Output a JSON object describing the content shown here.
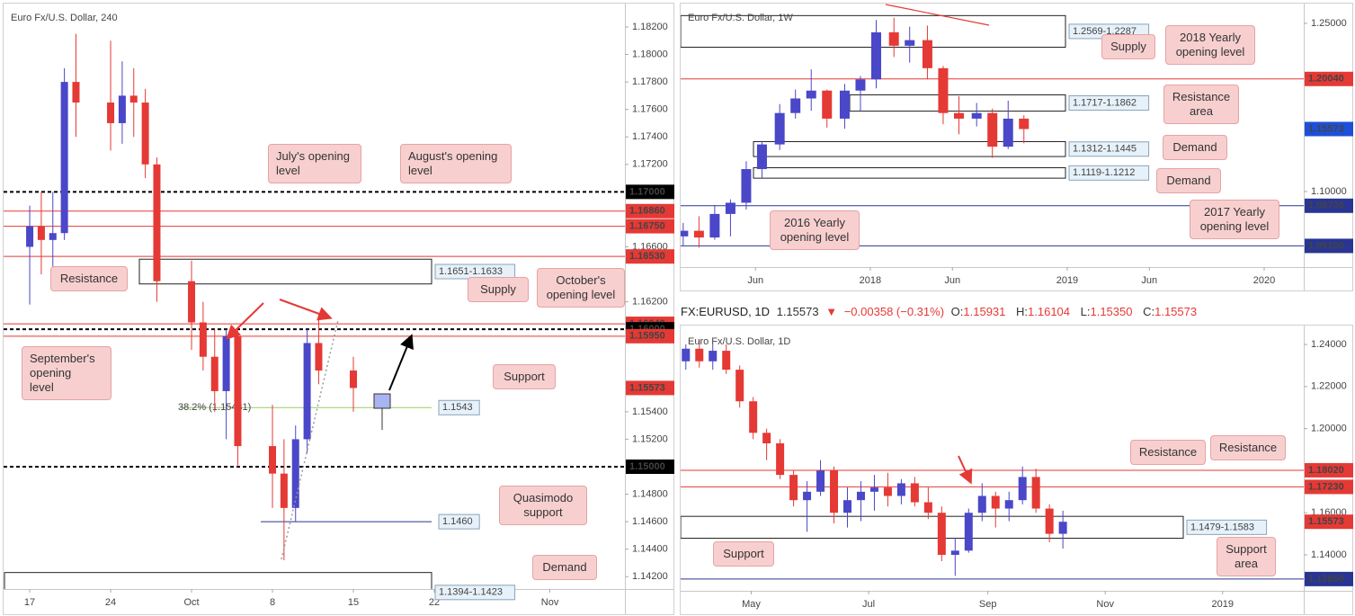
{
  "chart_data": [
    {
      "type": "candlestick",
      "title": "Euro Fx/U.S. Dollar, 240",
      "xlim": [
        -2.26,
        51.49
      ],
      "ylim": [
        1.1411,
        1.1837
      ],
      "xticks": [
        {
          "value": 0,
          "label": "17"
        },
        {
          "value": 7,
          "label": "24"
        },
        {
          "value": 14,
          "label": "Oct"
        },
        {
          "value": 21,
          "label": "8"
        },
        {
          "value": 28,
          "label": "15"
        },
        {
          "value": 35,
          "label": "22"
        },
        {
          "value": 45,
          "label": "Nov"
        }
      ],
      "yticks": [
        {
          "value": 1.182,
          "label": "1.18200"
        },
        {
          "value": 1.18,
          "label": "1.18000"
        },
        {
          "value": 1.178,
          "label": "1.17800"
        },
        {
          "value": 1.176,
          "label": "1.17600"
        },
        {
          "value": 1.174,
          "label": "1.17400"
        },
        {
          "value": 1.172,
          "label": "1.17200"
        },
        {
          "value": 1.166,
          "label": "1.16600"
        },
        {
          "value": 1.162,
          "label": "1.16200"
        },
        {
          "value": 1.154,
          "label": "1.15400"
        },
        {
          "value": 1.152,
          "label": "1.15200"
        },
        {
          "value": 1.148,
          "label": "1.14800"
        },
        {
          "value": 1.146,
          "label": "1.14600"
        },
        {
          "value": 1.144,
          "label": "1.14400"
        },
        {
          "value": 1.142,
          "label": "1.14200"
        }
      ],
      "up_color": "#4a47c8",
      "down_color": "#e53935",
      "candles": [
        {
          "x": 0,
          "o": 1.166,
          "h": 1.169,
          "l": 1.1618,
          "c": 1.1675
        },
        {
          "x": 1,
          "o": 1.1675,
          "h": 1.17,
          "l": 1.164,
          "c": 1.1665
        },
        {
          "x": 2,
          "o": 1.1665,
          "h": 1.17,
          "l": 1.1645,
          "c": 1.167
        },
        {
          "x": 3,
          "o": 1.167,
          "h": 1.179,
          "l": 1.1665,
          "c": 1.178
        },
        {
          "x": 4,
          "o": 1.178,
          "h": 1.1815,
          "l": 1.174,
          "c": 1.1765
        },
        {
          "x": 7,
          "o": 1.1765,
          "h": 1.181,
          "l": 1.173,
          "c": 1.175
        },
        {
          "x": 8,
          "o": 1.175,
          "h": 1.1795,
          "l": 1.1735,
          "c": 1.177
        },
        {
          "x": 9,
          "o": 1.177,
          "h": 1.179,
          "l": 1.174,
          "c": 1.1765
        },
        {
          "x": 10,
          "o": 1.1765,
          "h": 1.1775,
          "l": 1.171,
          "c": 1.172
        },
        {
          "x": 11,
          "o": 1.172,
          "h": 1.1725,
          "l": 1.162,
          "c": 1.1635
        },
        {
          "x": 14,
          "o": 1.1635,
          "h": 1.165,
          "l": 1.1585,
          "c": 1.1605
        },
        {
          "x": 15,
          "o": 1.1605,
          "h": 1.162,
          "l": 1.157,
          "c": 1.158
        },
        {
          "x": 16,
          "o": 1.158,
          "h": 1.16,
          "l": 1.154,
          "c": 1.1555
        },
        {
          "x": 17,
          "o": 1.1555,
          "h": 1.16,
          "l": 1.152,
          "c": 1.1595
        },
        {
          "x": 18,
          "o": 1.1595,
          "h": 1.16,
          "l": 1.15,
          "c": 1.1515
        },
        {
          "x": 21,
          "o": 1.1515,
          "h": 1.1545,
          "l": 1.147,
          "c": 1.1495
        },
        {
          "x": 22,
          "o": 1.1495,
          "h": 1.152,
          "l": 1.1432,
          "c": 1.147
        },
        {
          "x": 23,
          "o": 1.147,
          "h": 1.153,
          "l": 1.146,
          "c": 1.152
        },
        {
          "x": 24,
          "o": 1.152,
          "h": 1.16,
          "l": 1.151,
          "c": 1.159
        },
        {
          "x": 25,
          "o": 1.159,
          "h": 1.1612,
          "l": 1.156,
          "c": 1.157
        },
        {
          "x": 28,
          "o": 1.157,
          "h": 1.158,
          "l": 1.154,
          "c": 1.15573
        }
      ],
      "levels": [
        {
          "value": 1.17,
          "color": "#000000",
          "dashed": true,
          "axis_label": "1.17000"
        },
        {
          "value": 1.1686,
          "color": "#e53935",
          "dashed": false,
          "axis_label": "1.16860"
        },
        {
          "value": 1.1675,
          "color": "#e53935",
          "dashed": false,
          "axis_label": "1.16750"
        },
        {
          "value": 1.1653,
          "color": "#e53935",
          "dashed": false,
          "axis_label": "1.16530"
        },
        {
          "value": 1.1604,
          "color": "#e53935",
          "dashed": false,
          "axis_label": "1.16040"
        },
        {
          "value": 1.16,
          "color": "#000000",
          "dashed": true,
          "axis_label": "1.16000"
        },
        {
          "value": 1.1595,
          "color": "#e53935",
          "dashed": false,
          "axis_label": "1.15950"
        },
        {
          "value": 1.15573,
          "color": "#e53935",
          "line": false,
          "axis_label": "1.15573"
        },
        {
          "value": 1.15,
          "color": "#000000",
          "dashed": true,
          "axis_label": "1.15000"
        },
        {
          "value": 1.1543,
          "color": "#9ccc65",
          "dashed": false,
          "box_label": "1.1543"
        },
        {
          "value": 1.146,
          "color": "#283593",
          "dashed": false,
          "box_label": "1.1460"
        }
      ],
      "zones": [
        {
          "label": "1.1651-1.1633",
          "high": 1.1651,
          "low": 1.1633
        },
        {
          "label": "1.1394-1.1423",
          "high": 1.1423,
          "low": 1.1394
        }
      ],
      "fib": {
        "label": "38.2% (1.15431)",
        "value": 1.15431,
        "color": "#9ccc65"
      }
    },
    {
      "type": "candlestick",
      "title": "Euro Fx/U.S. Dollar, 1W",
      "xlim": [
        2017.037,
        2020.201
      ],
      "ylim": [
        1.0326,
        1.2676
      ],
      "xticks": [
        {
          "value": 2017.417,
          "label": "Jun"
        },
        {
          "value": 2018,
          "label": "2018"
        },
        {
          "value": 2018.417,
          "label": "Jun"
        },
        {
          "value": 2019,
          "label": "2019"
        },
        {
          "value": 2019.417,
          "label": "Jun"
        },
        {
          "value": 2020,
          "label": "2020"
        }
      ],
      "yticks": [
        {
          "value": 1.25,
          "label": "1.25000"
        },
        {
          "value": 1.1,
          "label": "1.10000"
        }
      ],
      "up_color": "#4a47c8",
      "down_color": "#e53935",
      "candles": [
        {
          "x": 2017.05,
          "o": 1.06,
          "h": 1.072,
          "l": 1.052,
          "c": 1.065
        },
        {
          "x": 2017.13,
          "o": 1.065,
          "h": 1.078,
          "l": 1.05,
          "c": 1.059
        },
        {
          "x": 2017.21,
          "o": 1.059,
          "h": 1.088,
          "l": 1.057,
          "c": 1.08
        },
        {
          "x": 2017.29,
          "o": 1.08,
          "h": 1.093,
          "l": 1.06,
          "c": 1.09
        },
        {
          "x": 2017.37,
          "o": 1.09,
          "h": 1.127,
          "l": 1.084,
          "c": 1.12
        },
        {
          "x": 2017.45,
          "o": 1.12,
          "h": 1.145,
          "l": 1.112,
          "c": 1.142
        },
        {
          "x": 2017.54,
          "o": 1.142,
          "h": 1.178,
          "l": 1.137,
          "c": 1.17
        },
        {
          "x": 2017.62,
          "o": 1.17,
          "h": 1.191,
          "l": 1.165,
          "c": 1.183
        },
        {
          "x": 2017.7,
          "o": 1.183,
          "h": 1.209,
          "l": 1.172,
          "c": 1.19
        },
        {
          "x": 2017.78,
          "o": 1.19,
          "h": 1.191,
          "l": 1.157,
          "c": 1.165
        },
        {
          "x": 2017.87,
          "o": 1.165,
          "h": 1.196,
          "l": 1.156,
          "c": 1.19
        },
        {
          "x": 2017.95,
          "o": 1.19,
          "h": 1.203,
          "l": 1.172,
          "c": 1.2
        },
        {
          "x": 2018.03,
          "o": 1.2,
          "h": 1.253,
          "l": 1.192,
          "c": 1.242
        },
        {
          "x": 2018.12,
          "o": 1.242,
          "h": 1.255,
          "l": 1.22,
          "c": 1.23
        },
        {
          "x": 2018.2,
          "o": 1.23,
          "h": 1.247,
          "l": 1.215,
          "c": 1.235
        },
        {
          "x": 2018.29,
          "o": 1.235,
          "h": 1.248,
          "l": 1.2,
          "c": 1.21
        },
        {
          "x": 2018.37,
          "o": 1.21,
          "h": 1.212,
          "l": 1.16,
          "c": 1.17
        },
        {
          "x": 2018.45,
          "o": 1.17,
          "h": 1.185,
          "l": 1.151,
          "c": 1.165
        },
        {
          "x": 2018.54,
          "o": 1.165,
          "h": 1.179,
          "l": 1.158,
          "c": 1.17
        },
        {
          "x": 2018.62,
          "o": 1.17,
          "h": 1.174,
          "l": 1.13,
          "c": 1.14
        },
        {
          "x": 2018.7,
          "o": 1.14,
          "h": 1.181,
          "l": 1.138,
          "c": 1.165
        },
        {
          "x": 2018.78,
          "o": 1.165,
          "h": 1.168,
          "l": 1.143,
          "c": 1.15573
        }
      ],
      "levels": [
        {
          "value": 1.2004,
          "color": "#e53935",
          "dashed": false,
          "axis_label": "1.20040"
        },
        {
          "value": 1.15573,
          "color": "#1e4fd8",
          "line": false,
          "axis_label": "1.15573"
        },
        {
          "value": 1.0873,
          "color": "#283593",
          "dashed": false,
          "axis_label": "1.08730"
        },
        {
          "value": 1.0515,
          "color": "#283593",
          "dashed": false,
          "axis_label": "1.05150"
        }
      ],
      "zones": [
        {
          "label": "1.2569-1.2287",
          "high": 1.2569,
          "low": 1.2287
        },
        {
          "label": "1.1717-1.1862",
          "high": 1.1862,
          "low": 1.1717
        },
        {
          "label": "1.1312-1.1445",
          "high": 1.1445,
          "low": 1.1312
        },
        {
          "label": "1.1119-1.1212",
          "high": 1.1212,
          "low": 1.1119
        }
      ]
    },
    {
      "type": "candlestick",
      "title": "Euro Fx/U.S. Dollar, 1D",
      "xlim": [
        84.3,
        408.2
      ],
      "ylim": [
        1.1229,
        1.249
      ],
      "xticks": [
        {
          "value": 121,
          "label": "May"
        },
        {
          "value": 182,
          "label": "Jul"
        },
        {
          "value": 244,
          "label": "Sep"
        },
        {
          "value": 305,
          "label": "Nov"
        },
        {
          "value": 366,
          "label": "2019"
        }
      ],
      "yticks": [
        {
          "value": 1.24,
          "label": "1.24000"
        },
        {
          "value": 1.22,
          "label": "1.22000"
        },
        {
          "value": 1.2,
          "label": "1.20000"
        },
        {
          "value": 1.16,
          "label": "1.16000"
        },
        {
          "value": 1.14,
          "label": "1.14000"
        }
      ],
      "up_color": "#4a47c8",
      "down_color": "#e53935",
      "candles": [
        {
          "x": 87,
          "o": 1.232,
          "h": 1.24,
          "l": 1.228,
          "c": 1.238
        },
        {
          "x": 94,
          "o": 1.238,
          "h": 1.242,
          "l": 1.229,
          "c": 1.232
        },
        {
          "x": 101,
          "o": 1.232,
          "h": 1.24,
          "l": 1.228,
          "c": 1.237
        },
        {
          "x": 108,
          "o": 1.237,
          "h": 1.24,
          "l": 1.226,
          "c": 1.228
        },
        {
          "x": 115,
          "o": 1.228,
          "h": 1.23,
          "l": 1.21,
          "c": 1.213
        },
        {
          "x": 122,
          "o": 1.213,
          "h": 1.215,
          "l": 1.195,
          "c": 1.198
        },
        {
          "x": 129,
          "o": 1.198,
          "h": 1.2,
          "l": 1.185,
          "c": 1.193
        },
        {
          "x": 136,
          "o": 1.193,
          "h": 1.195,
          "l": 1.176,
          "c": 1.178
        },
        {
          "x": 143,
          "o": 1.178,
          "h": 1.18,
          "l": 1.163,
          "c": 1.166
        },
        {
          "x": 150,
          "o": 1.166,
          "h": 1.175,
          "l": 1.151,
          "c": 1.17
        },
        {
          "x": 157,
          "o": 1.17,
          "h": 1.185,
          "l": 1.168,
          "c": 1.18
        },
        {
          "x": 164,
          "o": 1.18,
          "h": 1.182,
          "l": 1.155,
          "c": 1.16
        },
        {
          "x": 171,
          "o": 1.16,
          "h": 1.172,
          "l": 1.153,
          "c": 1.166
        },
        {
          "x": 178,
          "o": 1.166,
          "h": 1.175,
          "l": 1.156,
          "c": 1.17
        },
        {
          "x": 185,
          "o": 1.17,
          "h": 1.178,
          "l": 1.161,
          "c": 1.172
        },
        {
          "x": 192,
          "o": 1.172,
          "h": 1.179,
          "l": 1.163,
          "c": 1.168
        },
        {
          "x": 199,
          "o": 1.168,
          "h": 1.176,
          "l": 1.164,
          "c": 1.174
        },
        {
          "x": 206,
          "o": 1.174,
          "h": 1.177,
          "l": 1.163,
          "c": 1.165
        },
        {
          "x": 213,
          "o": 1.165,
          "h": 1.172,
          "l": 1.157,
          "c": 1.16
        },
        {
          "x": 220,
          "o": 1.16,
          "h": 1.163,
          "l": 1.137,
          "c": 1.14
        },
        {
          "x": 227,
          "o": 1.14,
          "h": 1.148,
          "l": 1.13,
          "c": 1.142
        },
        {
          "x": 234,
          "o": 1.142,
          "h": 1.162,
          "l": 1.141,
          "c": 1.16
        },
        {
          "x": 241,
          "o": 1.16,
          "h": 1.174,
          "l": 1.156,
          "c": 1.168
        },
        {
          "x": 248,
          "o": 1.168,
          "h": 1.17,
          "l": 1.153,
          "c": 1.162
        },
        {
          "x": 255,
          "o": 1.162,
          "h": 1.17,
          "l": 1.156,
          "c": 1.166
        },
        {
          "x": 262,
          "o": 1.166,
          "h": 1.182,
          "l": 1.164,
          "c": 1.177
        },
        {
          "x": 269,
          "o": 1.177,
          "h": 1.181,
          "l": 1.16,
          "c": 1.162
        },
        {
          "x": 276,
          "o": 1.162,
          "h": 1.164,
          "l": 1.146,
          "c": 1.15
        },
        {
          "x": 283,
          "o": 1.15,
          "h": 1.161,
          "l": 1.143,
          "c": 1.15573
        }
      ],
      "levels": [
        {
          "value": 1.1802,
          "color": "#e53935",
          "dashed": false,
          "axis_label": "1.18020"
        },
        {
          "value": 1.1723,
          "color": "#e53935",
          "dashed": false,
          "axis_label": "1.17230"
        },
        {
          "value": 1.15573,
          "color": "#e53935",
          "line": false,
          "axis_label": "1.15573"
        },
        {
          "value": 1.1285,
          "color": "#283593",
          "dashed": false,
          "axis_label": "1.12850"
        }
      ],
      "zones": [
        {
          "label": "1.1479-1.1583",
          "high": 1.1583,
          "low": 1.1479
        }
      ]
    }
  ],
  "header": {
    "symbol": "FX:EURUSD, 1D",
    "last": "1.15573",
    "direction": "▼",
    "change": "−0.00358 (−0.31%)",
    "ohlc": [
      {
        "label": "O:",
        "value": "1.15931"
      },
      {
        "label": "H:",
        "value": "1.16104"
      },
      {
        "label": "L:",
        "value": "1.15350"
      },
      {
        "label": "C:",
        "value": "1.15573"
      }
    ]
  },
  "callouts": {
    "left": [
      "July's opening level",
      "August's opening level",
      "Resistance",
      "Supply",
      "October's opening level",
      "September's opening level",
      "Support",
      "Quasimodo support",
      "Demand"
    ],
    "weekly": [
      "Supply",
      "2018 Yearly opening level",
      "Resistance area",
      "Demand",
      "Demand",
      "2016 Yearly opening level",
      "2017 Yearly opening level"
    ],
    "daily": [
      "Resistance",
      "Resistance",
      "Support",
      "Support area"
    ]
  }
}
